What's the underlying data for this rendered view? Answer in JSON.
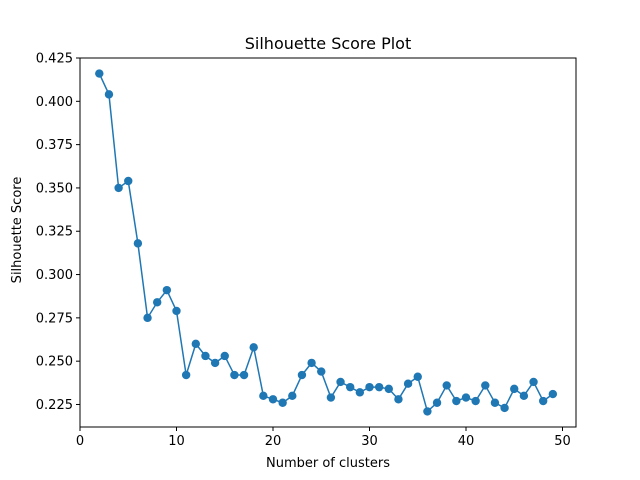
{
  "chart_data": {
    "type": "line",
    "title": "Silhouette Score Plot",
    "xlabel": "Number of clusters",
    "ylabel": "Silhouette Score",
    "xlim": [
      0,
      51.4
    ],
    "ylim": [
      0.212,
      0.425
    ],
    "xticks": [
      0,
      10,
      20,
      30,
      40,
      50
    ],
    "yticks": [
      0.225,
      0.25,
      0.275,
      0.3,
      0.325,
      0.35,
      0.375,
      0.4,
      0.425
    ],
    "xtick_labels": [
      "0",
      "10",
      "20",
      "30",
      "40",
      "50"
    ],
    "ytick_labels": [
      "0.225",
      "0.250",
      "0.275",
      "0.300",
      "0.325",
      "0.350",
      "0.375",
      "0.400",
      "0.425"
    ],
    "grid": false,
    "legend": false,
    "marker": "circle",
    "color": "#1f77b4",
    "series": [
      {
        "x": [
          2,
          3,
          4,
          5,
          6,
          7,
          8,
          9,
          10,
          11,
          12,
          13,
          14,
          15,
          16,
          17,
          18,
          19,
          20,
          21,
          22,
          23,
          24,
          25,
          26,
          27,
          28,
          29,
          30,
          31,
          32,
          33,
          34,
          35,
          36,
          37,
          38,
          39,
          40,
          41,
          42,
          43,
          44,
          45,
          46,
          47,
          48,
          49
        ],
        "values": [
          0.416,
          0.404,
          0.35,
          0.354,
          0.318,
          0.275,
          0.284,
          0.291,
          0.279,
          0.242,
          0.26,
          0.253,
          0.249,
          0.253,
          0.242,
          0.242,
          0.258,
          0.23,
          0.228,
          0.226,
          0.23,
          0.242,
          0.249,
          0.244,
          0.229,
          0.238,
          0.235,
          0.232,
          0.235,
          0.235,
          0.234,
          0.228,
          0.237,
          0.241,
          0.221,
          0.226,
          0.236,
          0.227,
          0.229,
          0.227,
          0.236,
          0.226,
          0.223,
          0.234,
          0.23,
          0.238,
          0.227,
          0.231
        ]
      }
    ]
  }
}
